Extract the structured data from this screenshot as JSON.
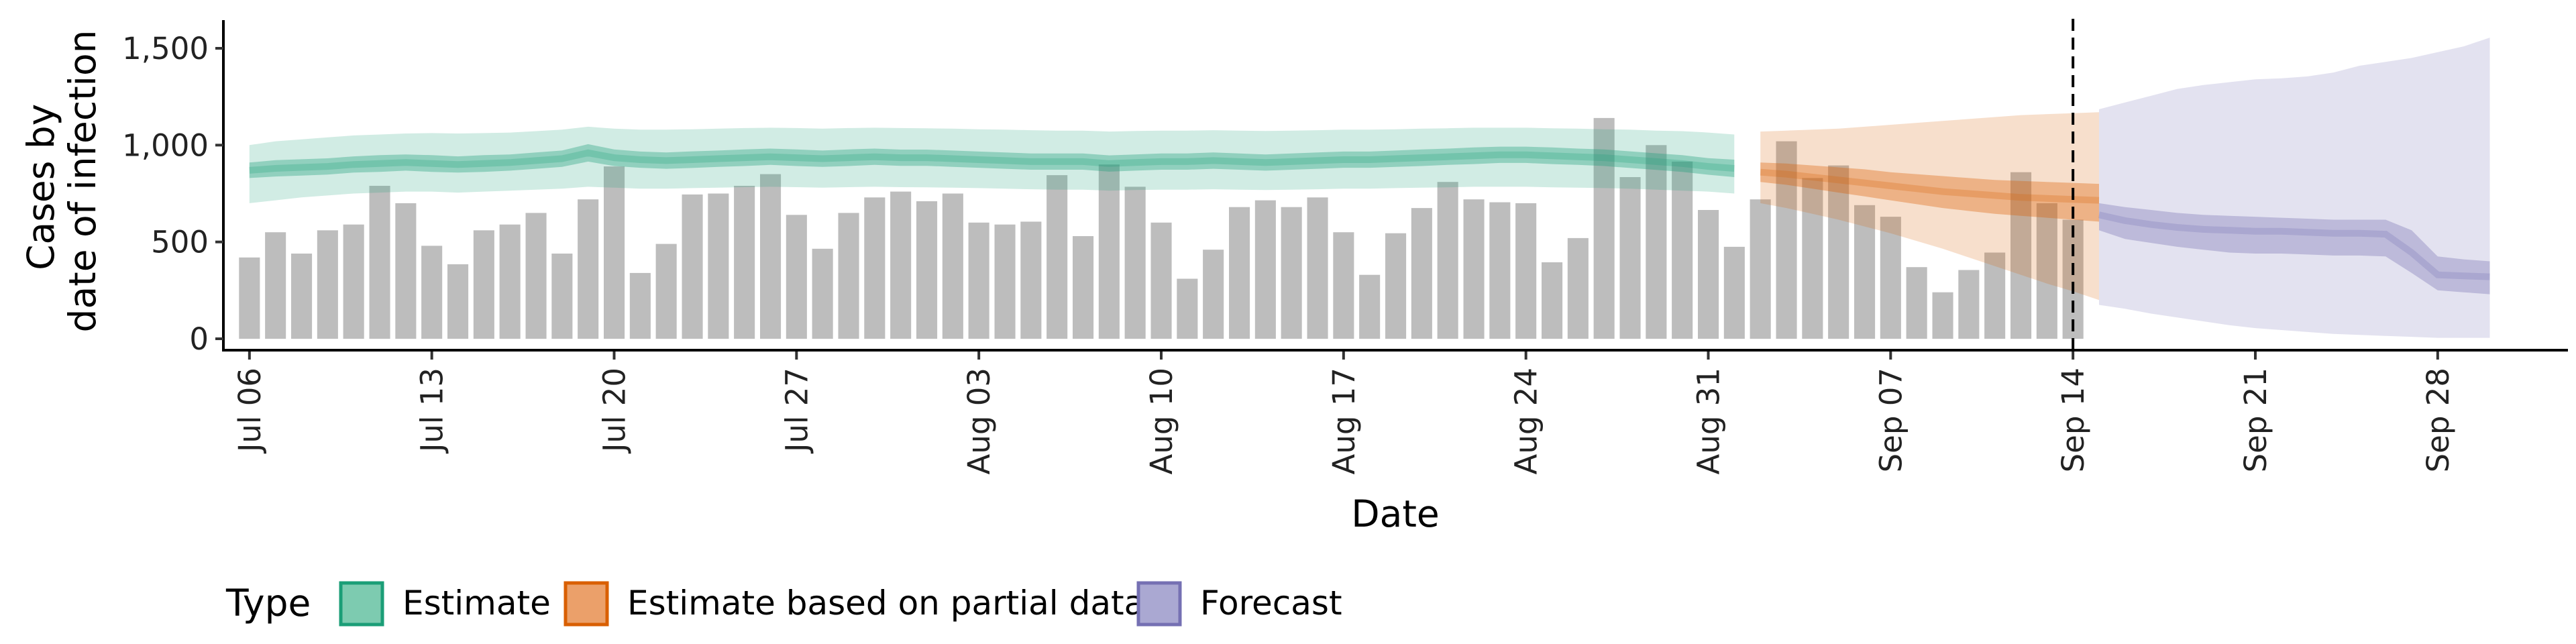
{
  "chart_data": {
    "type": "bar",
    "xlabel": "Date",
    "ylabel_lines": [
      "Cases by",
      "date of infection"
    ],
    "ylim": [
      0,
      1600
    ],
    "yticks": [
      0,
      500,
      1000,
      1500
    ],
    "ytick_labels": [
      "0",
      "500",
      "1,000",
      "1,500"
    ],
    "xlim": [
      "2020-07-05",
      "2020-10-03"
    ],
    "xticks": [
      "2020-07-06",
      "2020-07-13",
      "2020-07-20",
      "2020-07-27",
      "2020-08-03",
      "2020-08-10",
      "2020-08-17",
      "2020-08-24",
      "2020-08-31",
      "2020-09-07",
      "2020-09-14",
      "2020-09-21",
      "2020-09-28"
    ],
    "xtick_labels": [
      "Jul 06",
      "Jul 13",
      "Jul 20",
      "Jul 27",
      "Aug 03",
      "Aug 10",
      "Aug 17",
      "Aug 24",
      "Aug 31",
      "Sep 07",
      "Sep 14",
      "Sep 21",
      "Sep 28"
    ],
    "forecast_date": "2020-09-14",
    "grid": false,
    "legend": {
      "title": "Type",
      "position": "bottom",
      "items": [
        {
          "label": "Estimate",
          "fill": "#7dcbb0",
          "stroke": "#1b9e77"
        },
        {
          "label": "Estimate based on partial data",
          "fill": "#eba06a",
          "stroke": "#d95f02"
        },
        {
          "label": "Forecast",
          "fill": "#aaa8d2",
          "stroke": "#7570b3"
        }
      ]
    },
    "bar_color": "#bdbdbd",
    "reported_cases": {
      "start_date": "2020-07-06",
      "values": [
        420,
        550,
        440,
        560,
        590,
        790,
        700,
        480,
        385,
        560,
        590,
        650,
        440,
        720,
        890,
        340,
        490,
        745,
        750,
        790,
        850,
        640,
        465,
        650,
        730,
        760,
        710,
        750,
        600,
        590,
        605,
        845,
        530,
        900,
        785,
        600,
        310,
        460,
        680,
        715,
        680,
        730,
        550,
        330,
        545,
        675,
        810,
        720,
        705,
        700,
        395,
        520,
        1140,
        835,
        1000,
        915,
        665,
        475,
        720,
        1020,
        830,
        895,
        690,
        630,
        370,
        240,
        355,
        445,
        860,
        700,
        615
      ]
    },
    "series": [
      {
        "name": "Estimate",
        "start_date": "2020-07-06",
        "color": "#1b9e77",
        "median": [
          870,
          880,
          885,
          890,
          900,
          905,
          910,
          905,
          900,
          905,
          910,
          920,
          930,
          960,
          935,
          925,
          920,
          925,
          930,
          935,
          940,
          935,
          930,
          935,
          940,
          935,
          935,
          930,
          925,
          920,
          915,
          915,
          915,
          905,
          910,
          915,
          915,
          920,
          915,
          910,
          915,
          920,
          925,
          925,
          930,
          935,
          940,
          945,
          950,
          950,
          945,
          940,
          935,
          925,
          915,
          905,
          890,
          880
        ],
        "lower50": [
          830,
          838,
          843,
          848,
          858,
          862,
          868,
          862,
          858,
          862,
          868,
          878,
          888,
          915,
          892,
          883,
          878,
          882,
          888,
          892,
          898,
          892,
          888,
          892,
          898,
          893,
          893,
          888,
          883,
          878,
          873,
          873,
          873,
          863,
          868,
          873,
          873,
          878,
          873,
          868,
          873,
          878,
          883,
          883,
          888,
          892,
          898,
          902,
          908,
          908,
          902,
          898,
          892,
          882,
          872,
          862,
          847,
          835
        ],
        "upper50": [
          910,
          922,
          927,
          932,
          942,
          948,
          952,
          948,
          942,
          948,
          952,
          962,
          972,
          1005,
          978,
          967,
          962,
          968,
          972,
          978,
          982,
          978,
          972,
          978,
          982,
          977,
          977,
          972,
          967,
          962,
          957,
          957,
          957,
          947,
          952,
          957,
          957,
          962,
          957,
          952,
          957,
          962,
          967,
          967,
          972,
          978,
          982,
          988,
          992,
          992,
          988,
          982,
          978,
          968,
          958,
          948,
          933,
          925
        ],
        "lower90": [
          700,
          715,
          730,
          740,
          750,
          755,
          760,
          760,
          755,
          760,
          765,
          770,
          775,
          785,
          780,
          775,
          775,
          778,
          780,
          783,
          785,
          783,
          780,
          783,
          785,
          783,
          782,
          780,
          778,
          775,
          772,
          770,
          770,
          765,
          768,
          770,
          770,
          772,
          770,
          768,
          770,
          772,
          775,
          775,
          778,
          780,
          782,
          785,
          785,
          785,
          782,
          780,
          778,
          775,
          770,
          765,
          760,
          750
        ],
        "upper90": [
          1000,
          1020,
          1030,
          1040,
          1050,
          1055,
          1060,
          1062,
          1060,
          1062,
          1065,
          1072,
          1080,
          1095,
          1085,
          1080,
          1080,
          1082,
          1085,
          1088,
          1090,
          1088,
          1085,
          1088,
          1090,
          1088,
          1087,
          1085,
          1082,
          1080,
          1077,
          1075,
          1075,
          1070,
          1073,
          1075,
          1075,
          1077,
          1075,
          1073,
          1075,
          1077,
          1080,
          1080,
          1082,
          1085,
          1087,
          1090,
          1090,
          1090,
          1087,
          1085,
          1082,
          1080,
          1075,
          1072,
          1065,
          1055
        ]
      },
      {
        "name": "Estimate based on partial data",
        "start_date": "2020-09-02",
        "color": "#d95f02",
        "median": [
          860,
          850,
          835,
          820,
          805,
          790,
          775,
          760,
          750,
          740,
          730,
          725,
          720,
          715
        ],
        "lower50": [
          810,
          795,
          775,
          755,
          735,
          715,
          695,
          675,
          660,
          645,
          635,
          625,
          615,
          605
        ],
        "upper50": [
          910,
          905,
          895,
          885,
          875,
          860,
          850,
          840,
          830,
          820,
          815,
          810,
          805,
          800
        ],
        "lower90": [
          700,
          675,
          645,
          615,
          580,
          545,
          505,
          465,
          420,
          375,
          330,
          285,
          245,
          200
        ],
        "upper90": [
          1070,
          1075,
          1080,
          1085,
          1095,
          1105,
          1115,
          1125,
          1135,
          1145,
          1155,
          1160,
          1165,
          1170
        ]
      },
      {
        "name": "Forecast",
        "start_date": "2020-09-15",
        "color": "#7570b3",
        "median": [
          640,
          610,
          590,
          575,
          565,
          560,
          555,
          555,
          550,
          545,
          545,
          540,
          445,
          330,
          325,
          320
        ],
        "lower50": [
          560,
          515,
          495,
          475,
          460,
          445,
          440,
          440,
          435,
          430,
          430,
          425,
          340,
          250,
          240,
          230
        ],
        "upper50": [
          700,
          680,
          665,
          650,
          640,
          635,
          630,
          625,
          620,
          615,
          615,
          615,
          560,
          425,
          410,
          400
        ],
        "lower90": [
          175,
          155,
          130,
          110,
          90,
          70,
          55,
          45,
          35,
          25,
          20,
          15,
          10,
          5,
          5,
          5
        ],
        "upper90": [
          1185,
          1220,
          1255,
          1290,
          1310,
          1325,
          1340,
          1345,
          1355,
          1375,
          1410,
          1430,
          1450,
          1480,
          1510,
          1555
        ]
      }
    ]
  }
}
